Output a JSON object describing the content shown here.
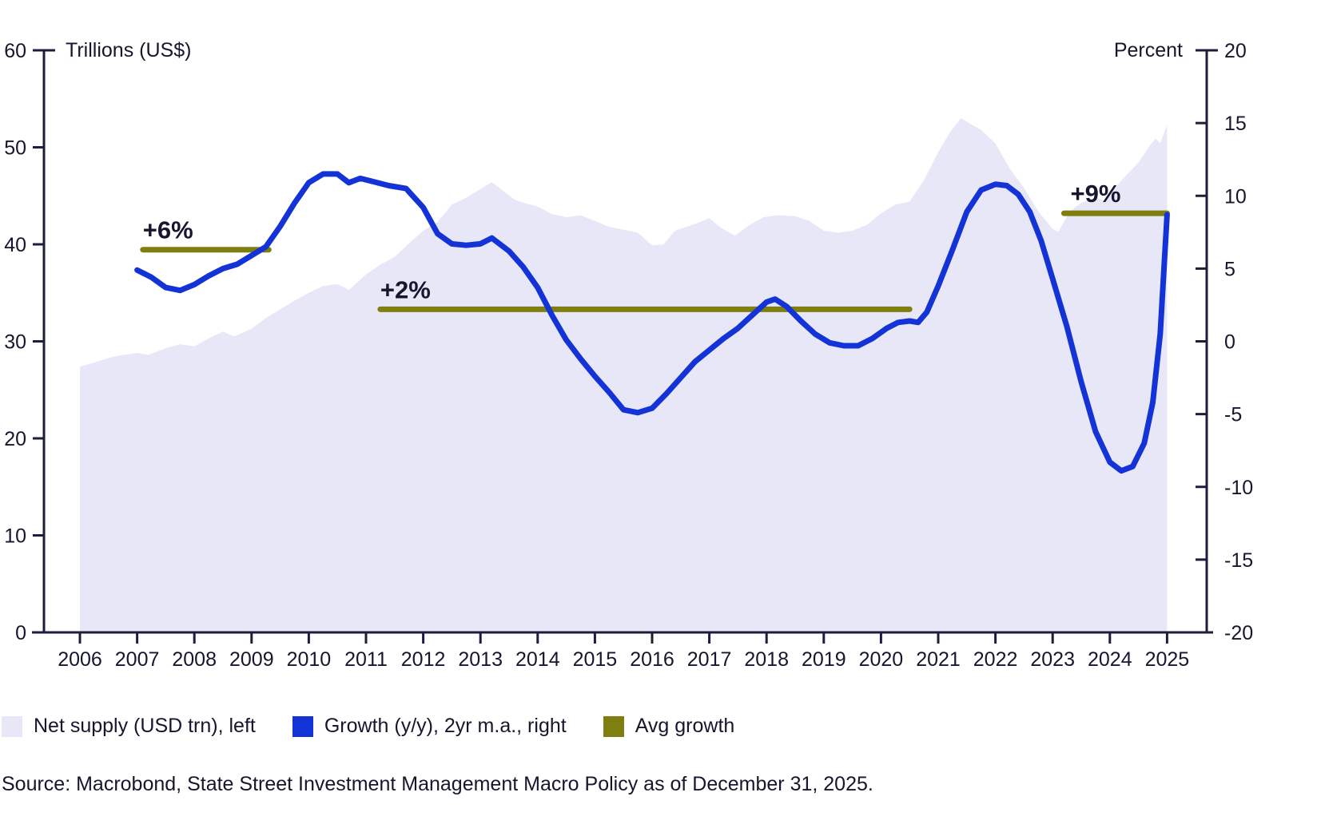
{
  "legend": {
    "items": [
      {
        "label": "Net supply (USD trn), left",
        "color": "#e7e7f7"
      },
      {
        "label": "Growth (y/y), 2yr m.a., right",
        "color": "#1433d6"
      },
      {
        "label": "Avg growth",
        "color": "#7e7f0e"
      }
    ]
  },
  "source": "Source: Macrobond, State Street Investment Management Macro Policy as of December 31, 2025.",
  "colors": {
    "area_fill": "#e7e7f7",
    "growth_line": "#1433d6",
    "avg_growth": "#7e7f0e",
    "text": "#16162e",
    "axis": "#1d1d3c"
  },
  "chart_data": {
    "type": "area",
    "title": "",
    "left_axis": {
      "label": "Trillions (US$)",
      "min": 0,
      "max": 60,
      "ticks": [
        0,
        10,
        20,
        30,
        40,
        50,
        60
      ]
    },
    "right_axis": {
      "label": "Percent",
      "min": -20,
      "max": 20,
      "ticks": [
        20,
        15,
        10,
        5,
        0,
        -5,
        -10,
        -15,
        -20
      ]
    },
    "x_axis": {
      "ticks": [
        2006,
        2007,
        2008,
        2009,
        2010,
        2011,
        2012,
        2013,
        2014,
        2015,
        2016,
        2017,
        2018,
        2019,
        2020,
        2021,
        2022,
        2023,
        2024,
        2025
      ]
    },
    "series": [
      {
        "name": "Net supply (USD trn), left",
        "type": "area",
        "axis": "left",
        "color": "#e7e7f7",
        "points": [
          [
            2006.0,
            27.4
          ],
          [
            2006.25,
            27.8
          ],
          [
            2006.5,
            28.3
          ],
          [
            2006.75,
            28.6
          ],
          [
            2007.0,
            28.8
          ],
          [
            2007.2,
            28.6
          ],
          [
            2007.5,
            29.3
          ],
          [
            2007.75,
            29.7
          ],
          [
            2008.0,
            29.5
          ],
          [
            2008.25,
            30.3
          ],
          [
            2008.5,
            31.0
          ],
          [
            2008.7,
            30.5
          ],
          [
            2009.0,
            31.3
          ],
          [
            2009.25,
            32.4
          ],
          [
            2009.5,
            33.3
          ],
          [
            2009.75,
            34.2
          ],
          [
            2010.0,
            35.0
          ],
          [
            2010.25,
            35.7
          ],
          [
            2010.5,
            35.9
          ],
          [
            2010.7,
            35.3
          ],
          [
            2011.0,
            36.9
          ],
          [
            2011.25,
            37.9
          ],
          [
            2011.5,
            38.7
          ],
          [
            2011.75,
            40.1
          ],
          [
            2012.0,
            41.4
          ],
          [
            2012.25,
            42.3
          ],
          [
            2012.5,
            44.1
          ],
          [
            2012.75,
            44.8
          ],
          [
            2013.0,
            45.7
          ],
          [
            2013.2,
            46.4
          ],
          [
            2013.4,
            45.5
          ],
          [
            2013.6,
            44.6
          ],
          [
            2013.8,
            44.2
          ],
          [
            2014.0,
            43.9
          ],
          [
            2014.25,
            43.1
          ],
          [
            2014.5,
            42.8
          ],
          [
            2014.75,
            43.0
          ],
          [
            2015.0,
            42.4
          ],
          [
            2015.25,
            41.8
          ],
          [
            2015.5,
            41.5
          ],
          [
            2015.75,
            41.2
          ],
          [
            2016.0,
            39.9
          ],
          [
            2016.2,
            40.0
          ],
          [
            2016.4,
            41.4
          ],
          [
            2016.6,
            41.8
          ],
          [
            2016.8,
            42.2
          ],
          [
            2017.0,
            42.7
          ],
          [
            2017.2,
            41.7
          ],
          [
            2017.45,
            40.9
          ],
          [
            2017.7,
            42.0
          ],
          [
            2017.95,
            42.8
          ],
          [
            2018.2,
            43.0
          ],
          [
            2018.5,
            42.9
          ],
          [
            2018.75,
            42.4
          ],
          [
            2019.0,
            41.4
          ],
          [
            2019.25,
            41.2
          ],
          [
            2019.5,
            41.4
          ],
          [
            2019.75,
            42.0
          ],
          [
            2020.0,
            43.2
          ],
          [
            2020.25,
            44.1
          ],
          [
            2020.5,
            44.4
          ],
          [
            2020.75,
            46.6
          ],
          [
            2021.0,
            49.5
          ],
          [
            2021.2,
            51.5
          ],
          [
            2021.4,
            53.0
          ],
          [
            2021.6,
            52.3
          ],
          [
            2021.75,
            51.8
          ],
          [
            2022.0,
            50.4
          ],
          [
            2022.25,
            47.8
          ],
          [
            2022.5,
            45.8
          ],
          [
            2022.75,
            43.4
          ],
          [
            2023.0,
            41.6
          ],
          [
            2023.1,
            41.3
          ],
          [
            2023.3,
            43.4
          ],
          [
            2023.5,
            44.3
          ],
          [
            2023.75,
            44.8
          ],
          [
            2023.9,
            44.5
          ],
          [
            2024.1,
            45.9
          ],
          [
            2024.3,
            47.2
          ],
          [
            2024.5,
            48.4
          ],
          [
            2024.7,
            50.2
          ],
          [
            2024.8,
            50.9
          ],
          [
            2024.88,
            50.4
          ],
          [
            2025.0,
            52.3
          ]
        ]
      },
      {
        "name": "Growth (y/y), 2yr m.a., right",
        "type": "line",
        "axis": "right",
        "color": "#1433d6",
        "points": [
          [
            2007.0,
            4.9
          ],
          [
            2007.25,
            4.4
          ],
          [
            2007.5,
            3.7
          ],
          [
            2007.75,
            3.5
          ],
          [
            2008.0,
            3.9
          ],
          [
            2008.25,
            4.5
          ],
          [
            2008.5,
            5.0
          ],
          [
            2008.75,
            5.3
          ],
          [
            2009.0,
            5.9
          ],
          [
            2009.25,
            6.5
          ],
          [
            2009.5,
            7.9
          ],
          [
            2009.75,
            9.5
          ],
          [
            2010.0,
            10.9
          ],
          [
            2010.25,
            11.5
          ],
          [
            2010.5,
            11.5
          ],
          [
            2010.7,
            10.9
          ],
          [
            2010.9,
            11.2
          ],
          [
            2011.1,
            11.0
          ],
          [
            2011.4,
            10.7
          ],
          [
            2011.7,
            10.5
          ],
          [
            2012.0,
            9.2
          ],
          [
            2012.25,
            7.4
          ],
          [
            2012.5,
            6.7
          ],
          [
            2012.75,
            6.6
          ],
          [
            2013.0,
            6.7
          ],
          [
            2013.2,
            7.1
          ],
          [
            2013.5,
            6.2
          ],
          [
            2013.75,
            5.1
          ],
          [
            2014.0,
            3.7
          ],
          [
            2014.25,
            1.8
          ],
          [
            2014.5,
            0.1
          ],
          [
            2014.75,
            -1.2
          ],
          [
            2015.0,
            -2.4
          ],
          [
            2015.25,
            -3.5
          ],
          [
            2015.5,
            -4.7
          ],
          [
            2015.75,
            -4.9
          ],
          [
            2016.0,
            -4.6
          ],
          [
            2016.25,
            -3.6
          ],
          [
            2016.5,
            -2.5
          ],
          [
            2016.75,
            -1.4
          ],
          [
            2017.0,
            -0.6
          ],
          [
            2017.25,
            0.2
          ],
          [
            2017.5,
            0.9
          ],
          [
            2017.75,
            1.8
          ],
          [
            2018.0,
            2.7
          ],
          [
            2018.15,
            2.9
          ],
          [
            2018.35,
            2.4
          ],
          [
            2018.6,
            1.4
          ],
          [
            2018.85,
            0.5
          ],
          [
            2019.1,
            -0.1
          ],
          [
            2019.35,
            -0.3
          ],
          [
            2019.6,
            -0.3
          ],
          [
            2019.85,
            0.2
          ],
          [
            2020.1,
            0.9
          ],
          [
            2020.3,
            1.3
          ],
          [
            2020.5,
            1.4
          ],
          [
            2020.65,
            1.3
          ],
          [
            2020.8,
            2.0
          ],
          [
            2021.0,
            3.8
          ],
          [
            2021.25,
            6.3
          ],
          [
            2021.5,
            8.9
          ],
          [
            2021.75,
            10.4
          ],
          [
            2022.0,
            10.8
          ],
          [
            2022.2,
            10.7
          ],
          [
            2022.4,
            10.1
          ],
          [
            2022.6,
            8.9
          ],
          [
            2022.8,
            6.9
          ],
          [
            2023.0,
            4.3
          ],
          [
            2023.25,
            1.0
          ],
          [
            2023.5,
            -2.8
          ],
          [
            2023.75,
            -6.2
          ],
          [
            2024.0,
            -8.3
          ],
          [
            2024.2,
            -8.9
          ],
          [
            2024.4,
            -8.6
          ],
          [
            2024.6,
            -7.0
          ],
          [
            2024.75,
            -4.2
          ],
          [
            2024.88,
            0.5
          ],
          [
            2025.0,
            8.7
          ]
        ]
      },
      {
        "name": "Avg growth",
        "type": "segments",
        "axis": "right",
        "color": "#7e7f0e",
        "segments": [
          {
            "label": "+6%",
            "value": 6.3,
            "from": 2007.1,
            "to": 2009.3,
            "label_dx": 0
          },
          {
            "label": "+2%",
            "value": 2.2,
            "from": 2011.25,
            "to": 2020.5,
            "label_dx": 0
          },
          {
            "label": "+9%",
            "value": 8.8,
            "from": 2023.2,
            "to": 2025.0,
            "label_dx": 8
          }
        ]
      }
    ]
  }
}
